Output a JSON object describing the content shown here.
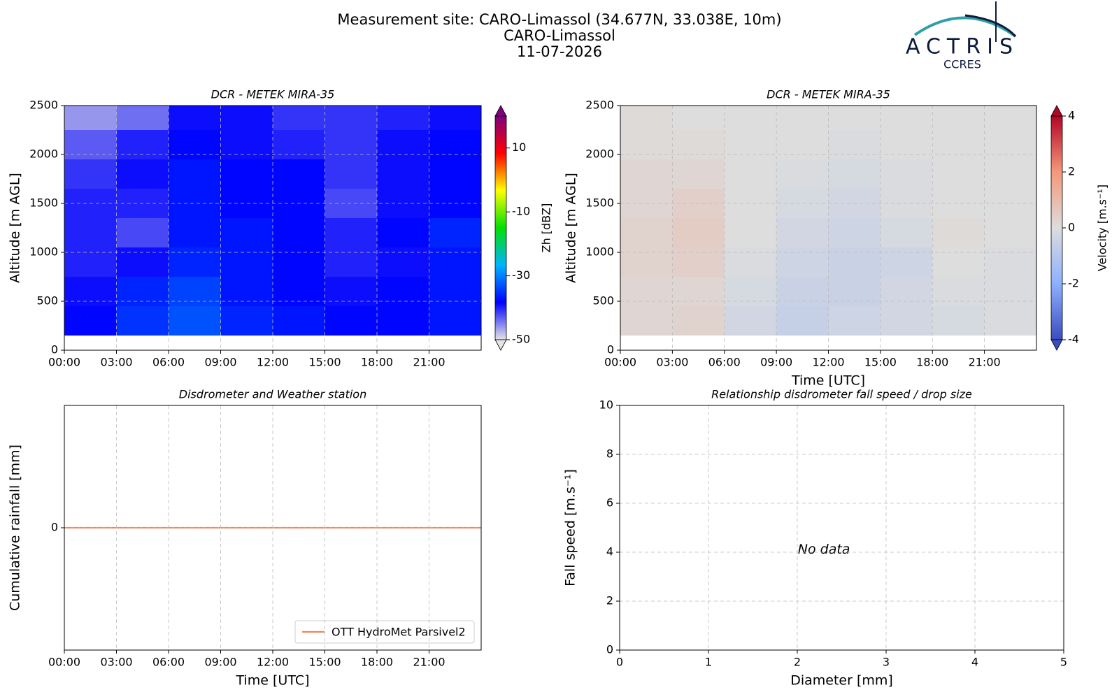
{
  "header": {
    "title": "Measurement site: CARO-Limassol (34.677N, 33.038E, 10m)",
    "site": "CARO-Limassol",
    "date": "11-07-2026"
  },
  "logo": {
    "name": "ACTRIS",
    "group": "CCRES"
  },
  "chart_data": [
    {
      "type": "heatmap",
      "title": "DCR - METEK MIRA-35",
      "ylabel": "Altitude [m AGL]",
      "xlim": [
        0,
        24
      ],
      "xticks": [
        {
          "value": 0,
          "label": "00:00"
        },
        {
          "value": 3,
          "label": "03:00"
        },
        {
          "value": 6,
          "label": "06:00"
        },
        {
          "value": 9,
          "label": "09:00"
        },
        {
          "value": 12,
          "label": "12:00"
        },
        {
          "value": 15,
          "label": "15:00"
        },
        {
          "value": 18,
          "label": "18:00"
        },
        {
          "value": 21,
          "label": "21:00"
        }
      ],
      "ylim": [
        0,
        2500
      ],
      "yticks": [
        0,
        500,
        1000,
        1500,
        2000,
        2500
      ],
      "xbins": [
        0,
        3,
        6,
        9,
        12,
        15,
        18,
        21,
        24
      ],
      "ybins": [
        150,
        450,
        750,
        1050,
        1350,
        1650,
        1950,
        2250,
        2500
      ],
      "z": [
        [
          -38,
          -35,
          -33,
          -36,
          -37,
          -38,
          -38,
          -37
        ],
        [
          -39,
          -36,
          -34,
          -37,
          -38,
          -39,
          -38,
          -37
        ],
        [
          -40,
          -39,
          -36,
          -37,
          -38,
          -40,
          -39,
          -37
        ],
        [
          -40,
          -42,
          -37,
          -37,
          -38,
          -40,
          -38,
          -36
        ],
        [
          -40,
          -40,
          -37,
          -38,
          -38,
          -42,
          -39,
          -38
        ],
        [
          -41,
          -39,
          -37,
          -38,
          -38,
          -41,
          -39,
          -38
        ],
        [
          -43,
          -40,
          -38,
          -39,
          -40,
          -41,
          -39,
          -38
        ],
        [
          -46,
          -44,
          -39,
          -39,
          -41,
          -41,
          -40,
          -39
        ]
      ],
      "clim": [
        -50,
        20
      ],
      "cticks": [
        10,
        -10,
        -30,
        -50
      ],
      "clabel": "Zh [dBZ]",
      "colorscale": [
        "#e4e4e4",
        "#0000ff",
        "#00b4ff",
        "#00e000",
        "#ffff00",
        "#ff0000",
        "#800080"
      ],
      "extend": "both",
      "grid": true
    },
    {
      "type": "heatmap",
      "title": "DCR - METEK MIRA-35",
      "ylabel": "Altitude [m AGL]",
      "xlabel": "Time [UTC]",
      "xlim": [
        0,
        24
      ],
      "xticks": [
        {
          "value": 0,
          "label": "00:00"
        },
        {
          "value": 3,
          "label": "03:00"
        },
        {
          "value": 6,
          "label": "06:00"
        },
        {
          "value": 9,
          "label": "09:00"
        },
        {
          "value": 12,
          "label": "12:00"
        },
        {
          "value": 15,
          "label": "15:00"
        },
        {
          "value": 18,
          "label": "18:00"
        },
        {
          "value": 21,
          "label": "21:00"
        }
      ],
      "ylim": [
        0,
        2500
      ],
      "yticks": [
        0,
        500,
        1000,
        1500,
        2000,
        2500
      ],
      "xbins": [
        0,
        3,
        6,
        9,
        12,
        15,
        18,
        21,
        24
      ],
      "ybins": [
        150,
        450,
        750,
        1050,
        1350,
        1650,
        1950,
        2250,
        2500
      ],
      "z": [
        [
          0.2,
          0.3,
          -0.3,
          -0.6,
          -0.4,
          -0.3,
          -0.2,
          -0.1
        ],
        [
          0.2,
          0.2,
          -0.2,
          -0.5,
          -0.5,
          -0.3,
          -0.1,
          -0.1
        ],
        [
          0.3,
          0.4,
          -0.1,
          -0.4,
          -0.5,
          -0.4,
          0,
          -0.1
        ],
        [
          0.3,
          0.5,
          0,
          -0.3,
          -0.4,
          -0.2,
          0.1,
          0
        ],
        [
          0.2,
          0.4,
          0,
          -0.2,
          -0.3,
          -0.1,
          0,
          0
        ],
        [
          0.2,
          0.2,
          0,
          -0.1,
          -0.2,
          -0.1,
          0,
          0
        ],
        [
          0.1,
          0.1,
          0,
          0,
          -0.1,
          0,
          0,
          0
        ],
        [
          0.1,
          0,
          0,
          0,
          0,
          0,
          0,
          0
        ]
      ],
      "clim": [
        -4,
        4
      ],
      "cticks": [
        4,
        2,
        0,
        -2,
        -4
      ],
      "clabel": "Velocity [m.s⁻¹]",
      "colorscale": [
        "#3b4cc0",
        "#8db0fe",
        "#dddddd",
        "#f4987a",
        "#b40426"
      ],
      "extend": "both",
      "grid": true
    },
    {
      "type": "line",
      "title": "Disdrometer and Weather station",
      "xlabel": "Time [UTC]",
      "ylabel": "Cumulative rainfall [mm]",
      "x": [
        0,
        24
      ],
      "xlim": [
        0,
        24
      ],
      "xticks": [
        {
          "value": 0,
          "label": "00:00"
        },
        {
          "value": 3,
          "label": "03:00"
        },
        {
          "value": 6,
          "label": "06:00"
        },
        {
          "value": 9,
          "label": "09:00"
        },
        {
          "value": 12,
          "label": "12:00"
        },
        {
          "value": 15,
          "label": "15:00"
        },
        {
          "value": 18,
          "label": "18:00"
        },
        {
          "value": 21,
          "label": "21:00"
        }
      ],
      "ylim": [
        -0.055,
        0.055
      ],
      "yticks": [
        0
      ],
      "series": [
        {
          "name": "OTT HydroMet Parsivel2",
          "color": "#f0875a",
          "values": [
            0,
            0
          ]
        }
      ],
      "legend": "lower right",
      "grid": true
    },
    {
      "type": "scatter",
      "title": "Relationship disdrometer fall speed / drop size",
      "xlabel": "Diameter [mm]",
      "ylabel": "Fall speed [m.s⁻¹]",
      "xlim": [
        0,
        5
      ],
      "xticks": [
        0,
        1,
        2,
        3,
        4,
        5
      ],
      "ylim": [
        0,
        10
      ],
      "yticks": [
        0,
        2,
        4,
        6,
        8,
        10
      ],
      "annotation": "No data",
      "grid": true
    }
  ]
}
